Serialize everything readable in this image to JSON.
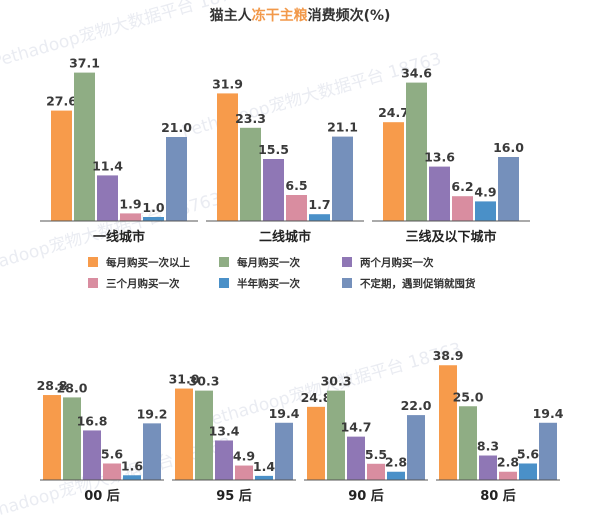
{
  "title": {
    "pre": "猫主人",
    "highlight": "冻干主粮",
    "post": "消费频次(%)"
  },
  "watermark": [
    "Pethadoop宠物大数据平台 18763",
    "Pethadoop宠物大数据平台 18763",
    "Pethadoop宠物大数据平台 18763",
    "Pethadoop宠物大数据平台 18763",
    "Pethadoop宠物大数据平台 18763"
  ],
  "colors": [
    "#f79b4b",
    "#8fad84",
    "#8f77b5",
    "#d98da0",
    "#4a90c8",
    "#7590bb"
  ],
  "chart_data": [
    {
      "type": "bar",
      "categories": [
        "一线城市",
        "二线城市",
        "三线及以下城市"
      ],
      "series": [
        {
          "name": "每月购买一次以上",
          "values": [
            27.6,
            31.9,
            24.7
          ]
        },
        {
          "name": "每月购买一次",
          "values": [
            37.1,
            23.3,
            34.6
          ]
        },
        {
          "name": "两个月购买一次",
          "values": [
            11.4,
            15.5,
            13.6
          ]
        },
        {
          "name": "三个月购买一次",
          "values": [
            1.9,
            6.5,
            6.2
          ]
        },
        {
          "name": "半年购买一次",
          "values": [
            1.0,
            1.7,
            4.9
          ]
        },
        {
          "name": "不定期，遇到促销就囤货",
          "values": [
            21.0,
            21.1,
            16.0
          ]
        }
      ],
      "value_labels": [
        [
          "27.6",
          "31.9",
          "24.7"
        ],
        [
          "37.1",
          "23.3",
          "34.6"
        ],
        [
          "11.4",
          "15.5",
          "13.6"
        ],
        [
          "1.9",
          "6.5",
          "6.2"
        ],
        [
          "1.0",
          "1.7",
          "4.9"
        ],
        [
          "21.0",
          "21.1",
          "16.0"
        ]
      ],
      "legend": "middle"
    },
    {
      "type": "bar",
      "categories": [
        "00 后",
        "95 后",
        "90 后",
        "80 后"
      ],
      "series": [
        {
          "name": "每月购买一次以上",
          "values": [
            28.8,
            31.0,
            24.8,
            38.9
          ]
        },
        {
          "name": "每月购买一次",
          "values": [
            28.0,
            30.3,
            30.3,
            25.0
          ]
        },
        {
          "name": "两个月购买一次",
          "values": [
            16.8,
            13.4,
            14.7,
            8.3
          ]
        },
        {
          "name": "三个月购买一次",
          "values": [
            5.6,
            4.9,
            5.5,
            2.8
          ]
        },
        {
          "name": "半年购买一次",
          "values": [
            1.6,
            1.4,
            2.8,
            5.6
          ]
        },
        {
          "name": "不定期，遇到促销就囤货",
          "values": [
            19.2,
            19.4,
            22.0,
            19.4
          ]
        }
      ],
      "value_labels": [
        [
          "28.8",
          "31.0",
          "24.8",
          "38.9"
        ],
        [
          "28.0",
          "30.3",
          "30.3",
          "25.0"
        ],
        [
          "16.8",
          "13.4",
          "14.7",
          "8.3"
        ],
        [
          "5.6",
          "4.9",
          "5.5",
          "2.8"
        ],
        [
          "1.6",
          "1.4",
          "2.8",
          "5.6"
        ],
        [
          "19.2",
          "19.4",
          "22.0",
          "19.4"
        ]
      ]
    }
  ]
}
